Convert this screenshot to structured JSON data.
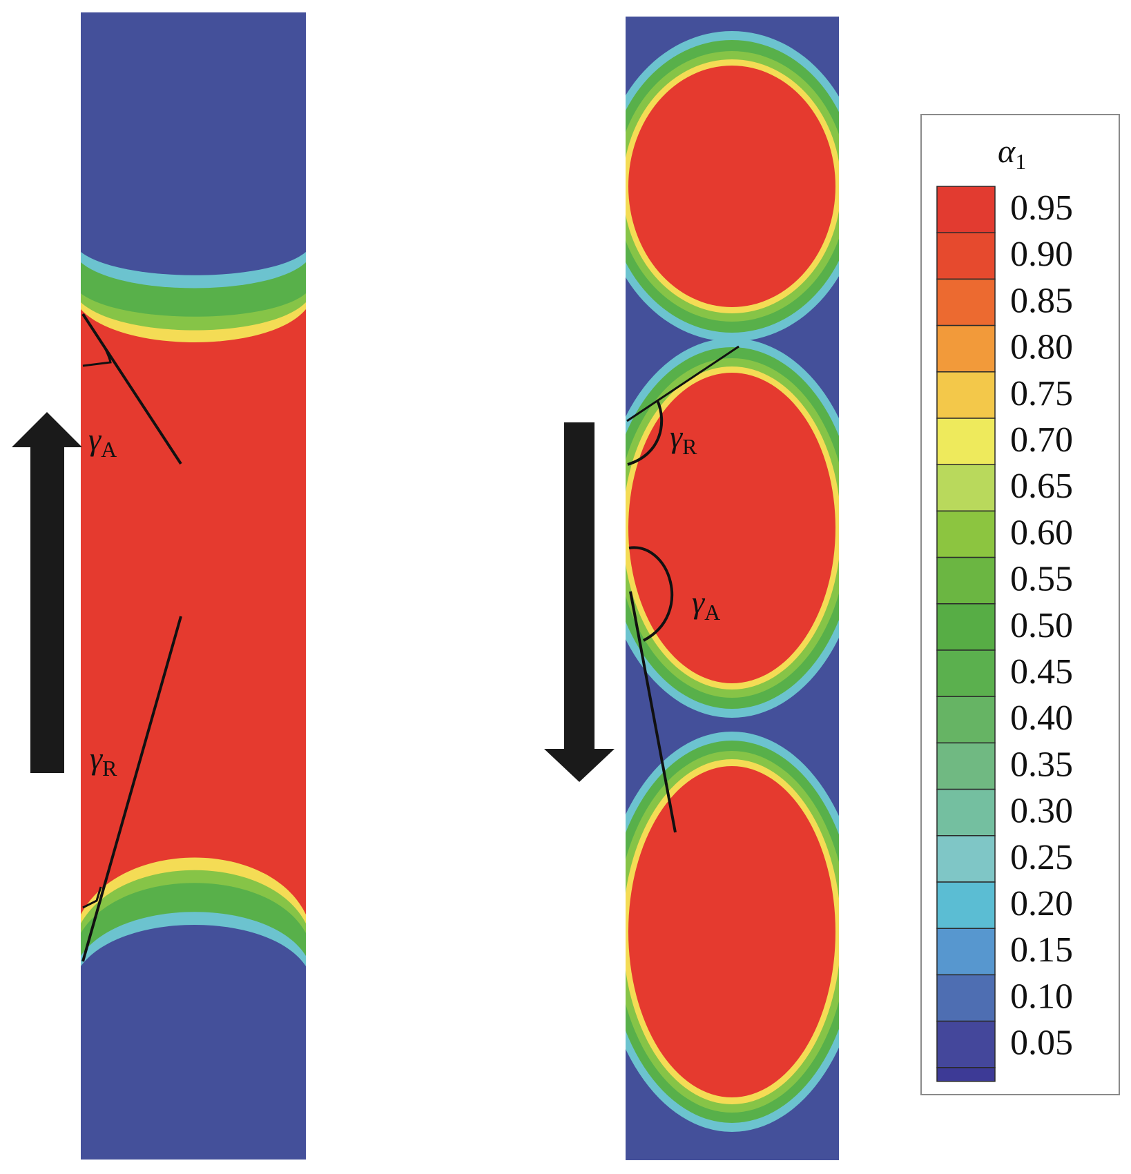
{
  "panels": {
    "left": {
      "angle_advancing": {
        "symbol": "γ",
        "subscript": "A"
      },
      "angle_receding": {
        "symbol": "γ",
        "subscript": "R"
      },
      "arrow_direction": "up"
    },
    "right": {
      "angle_receding": {
        "symbol": "γ",
        "subscript": "R"
      },
      "angle_advancing": {
        "symbol": "γ",
        "subscript": "A"
      },
      "arrow_direction": "down"
    }
  },
  "legend": {
    "title_symbol": "α",
    "title_subscript": "1",
    "levels": [
      {
        "label": "0.95",
        "color": "#e23b30"
      },
      {
        "label": "0.90",
        "color": "#e64a2e"
      },
      {
        "label": "0.85",
        "color": "#ec6a30"
      },
      {
        "label": "0.80",
        "color": "#f29a3a"
      },
      {
        "label": "0.75",
        "color": "#f3c84a"
      },
      {
        "label": "0.70",
        "color": "#eeea5c"
      },
      {
        "label": "0.65",
        "color": "#b9d95c"
      },
      {
        "label": "0.60",
        "color": "#8cc540"
      },
      {
        "label": "0.55",
        "color": "#6bb642"
      },
      {
        "label": "0.50",
        "color": "#57ad45"
      },
      {
        "label": "0.45",
        "color": "#5bb04e"
      },
      {
        "label": "0.40",
        "color": "#66b464"
      },
      {
        "label": "0.35",
        "color": "#70b982"
      },
      {
        "label": "0.30",
        "color": "#74bfa0"
      },
      {
        "label": "0.25",
        "color": "#7fc6c6"
      },
      {
        "label": "0.20",
        "color": "#5bbdd3"
      },
      {
        "label": "0.15",
        "color": "#5797cf"
      },
      {
        "label": "0.10",
        "color": "#4e6eb2"
      },
      {
        "label": "0.05",
        "color": "#44479b"
      }
    ],
    "bottom_color": "#3d3a96"
  },
  "colors": {
    "liquid": "#e53a2f",
    "gas": "#44509a",
    "outline": "#1a1a1a"
  }
}
